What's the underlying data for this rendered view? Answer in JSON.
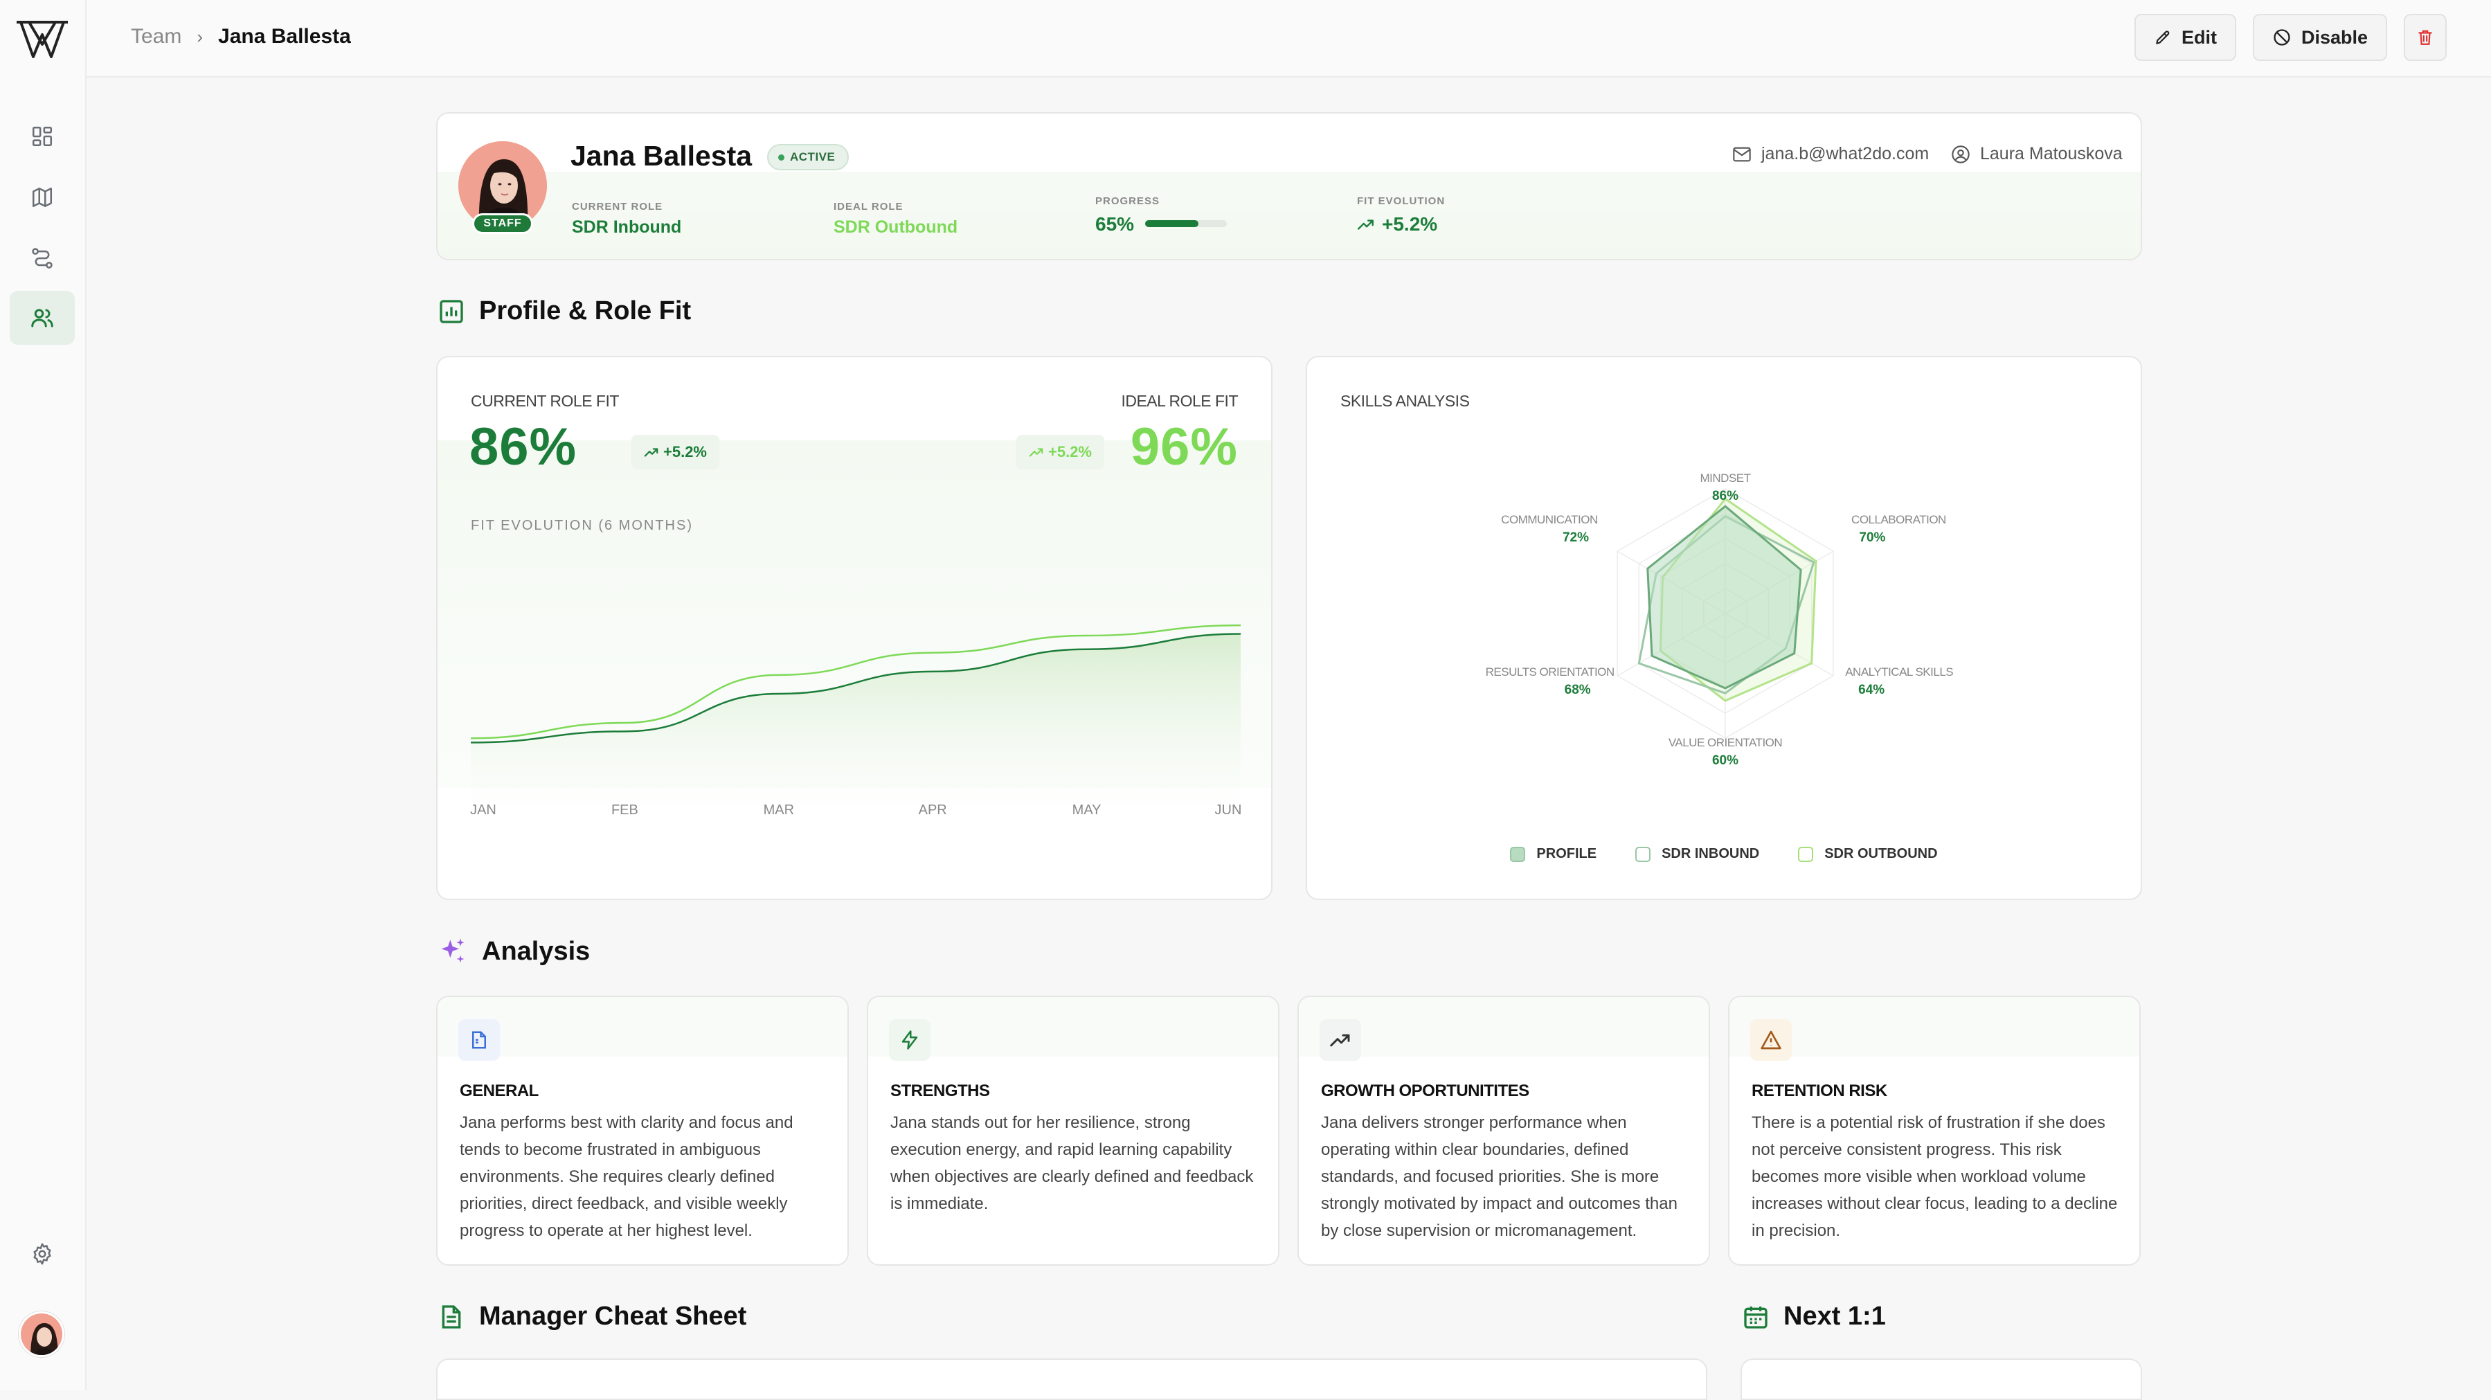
{
  "breadcrumb": {
    "parent": "Team",
    "separator": "›",
    "current": "Jana Ballesta"
  },
  "actions": {
    "edit": "Edit",
    "disable": "Disable"
  },
  "sidebar": {
    "items": [
      "dashboard-icon",
      "map-icon",
      "flow-icon",
      "team-icon"
    ],
    "active": "team-icon"
  },
  "profile": {
    "name": "Jana Ballesta",
    "badge": "STAFF",
    "status": "ACTIVE",
    "current_role_label": "CURRENT ROLE",
    "current_role": "SDR Inbound",
    "ideal_role_label": "IDEAL ROLE",
    "ideal_role": "SDR Outbound",
    "progress_label": "PROGRESS",
    "progress": "65%",
    "progress_value": 0.65,
    "fit_evolution_label": "FIT EVOLUTION",
    "fit_evolution": "+5.2%",
    "email": "jana.b@what2do.com",
    "manager": "Laura Matouskova"
  },
  "sections": {
    "profile_fit": "Profile & Role Fit",
    "analysis": "Analysis",
    "cheat_sheet": "Manager Cheat Sheet",
    "next_one_on_one": "Next 1:1"
  },
  "fit": {
    "current_label": "CURRENT ROLE FIT",
    "current_value": "86%",
    "current_delta": "+5.2%",
    "ideal_label": "IDEAL ROLE FIT",
    "ideal_value": "96%",
    "ideal_delta": "+5.2%",
    "chart_title": "FIT EVOLUTION (6 MONTHS)"
  },
  "skills": {
    "title": "SKILLS ANALYSIS",
    "legend": [
      "PROFILE",
      "SDR INBOUND",
      "SDR OUTBOUND"
    ]
  },
  "colors": {
    "primary": "#1c7d3a",
    "accent": "#7ed957",
    "inbound": "#6aa97a",
    "outbound": "#a6e07b"
  },
  "chart_data": [
    {
      "type": "line",
      "title": "FIT EVOLUTION (6 MONTHS)",
      "categories": [
        "JAN",
        "FEB",
        "MAR",
        "APR",
        "MAY",
        "JUN"
      ],
      "series": [
        {
          "values": [
            0.5,
            7,
            29,
            42,
            55,
            64
          ]
        },
        {
          "values": [
            3,
            12,
            40,
            53,
            63,
            69
          ]
        }
      ],
      "ylim": [
        -5,
        80
      ],
      "grid": false
    },
    {
      "type": "radar",
      "title": "SKILLS ANALYSIS",
      "categories": [
        "MINDSET",
        "COLLABORATION",
        "ANALYTICAL SKILLS",
        "VALUE ORIENTATION",
        "RESULTS ORIENTATION",
        "COMMUNICATION"
      ],
      "labels": [
        "86%",
        "70%",
        "64%",
        "60%",
        "68%",
        "72%"
      ],
      "series": [
        {
          "name": "PROFILE",
          "values": [
            86,
            70,
            64,
            60,
            68,
            72
          ]
        },
        {
          "name": "SDR INBOUND",
          "values": [
            78,
            82,
            56,
            64,
            80,
            64
          ]
        },
        {
          "name": "SDR OUTBOUND",
          "values": [
            92,
            84,
            80,
            70,
            60,
            58
          ]
        }
      ],
      "ylim": [
        0,
        100
      ],
      "legend": "bottom"
    }
  ],
  "analysis": [
    {
      "title": "GENERAL",
      "icon": "document-icon",
      "body": "Jana performs best with clarity and focus and tends to become frustrated in ambiguous environments. She requires clearly defined priorities, direct feedback, and visible weekly progress to operate at her highest level."
    },
    {
      "title": "STRENGTHS",
      "icon": "bolt-icon",
      "body": "Jana stands out for her resilience, strong execution energy, and rapid learning capability when objectives are clearly defined and feedback is immediate."
    },
    {
      "title": "GROWTH OPORTUNITITES",
      "icon": "trend-up-icon",
      "body": "Jana delivers stronger performance when operating within clear boundaries, defined standards, and focused priorities. She is more strongly motivated by impact and outcomes than by close supervision or micromanagement."
    },
    {
      "title": "RETENTION RISK",
      "icon": "warning-icon",
      "body": "There is a potential risk of frustration if she does not perceive consistent progress. This risk becomes more visible when workload volume increases without clear focus, leading to a decline in precision."
    }
  ]
}
